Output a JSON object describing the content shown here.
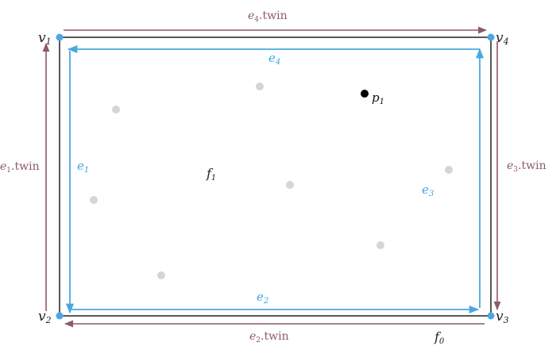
{
  "vertices": [
    {
      "id": "v1",
      "label": "v",
      "sub": "1"
    },
    {
      "id": "v2",
      "label": "v",
      "sub": "2"
    },
    {
      "id": "v3",
      "label": "v",
      "sub": "3"
    },
    {
      "id": "v4",
      "label": "v",
      "sub": "4"
    }
  ],
  "half_edges": [
    {
      "id": "e1",
      "label": "e",
      "sub": "1"
    },
    {
      "id": "e2",
      "label": "e",
      "sub": "2"
    },
    {
      "id": "e3",
      "label": "e",
      "sub": "3"
    },
    {
      "id": "e4",
      "label": "e",
      "sub": "4"
    }
  ],
  "twin_edges": [
    {
      "id": "e1-twin",
      "label": "e",
      "sub": "1",
      "suffix": ".twin"
    },
    {
      "id": "e2-twin",
      "label": "e",
      "sub": "2",
      "suffix": ".twin"
    },
    {
      "id": "e3-twin",
      "label": "e",
      "sub": "3",
      "suffix": ".twin"
    },
    {
      "id": "e4-twin",
      "label": "e",
      "sub": "4",
      "suffix": ".twin"
    }
  ],
  "faces": [
    {
      "id": "f1",
      "label": "f",
      "sub": "1"
    },
    {
      "id": "f0",
      "label": "f",
      "sub": "0"
    }
  ],
  "query_point": {
    "label": "p",
    "sub": "1"
  },
  "colors": {
    "vertex": "#4aa8e0",
    "half_edge": "#4aa8e0",
    "twin_edge": "#8e5a63",
    "boundary": "#111111",
    "site_point": "#d9d4d4",
    "query_point": "#000000"
  }
}
